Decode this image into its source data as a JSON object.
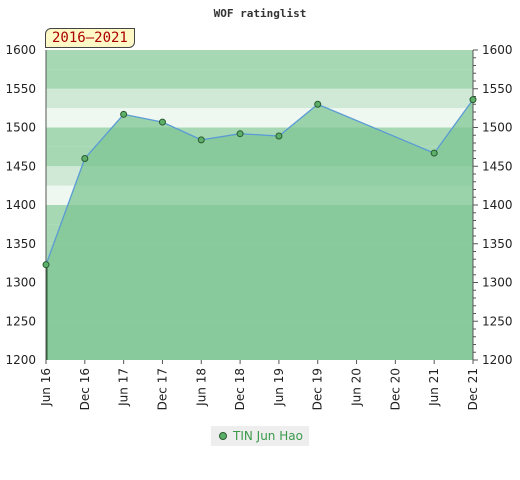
{
  "chart_data": {
    "type": "line",
    "title": "WOF ratinglist",
    "period_label": "2016–2021",
    "xlabel": "",
    "ylabel": "",
    "categories": [
      "Jun 16",
      "Dec 16",
      "Jun 17",
      "Dec 17",
      "Jun 18",
      "Dec 18",
      "Jun 19",
      "Dec 19",
      "Jun 20",
      "Dec 20",
      "Jun 21",
      "Dec 21"
    ],
    "ylim": [
      1200,
      1600
    ],
    "yticks": [
      1200,
      1250,
      1300,
      1350,
      1400,
      1450,
      1500,
      1550,
      1600
    ],
    "series": [
      {
        "name": "TIN Jun Hao",
        "points": [
          {
            "x": "Jun 16",
            "y": 1323
          },
          {
            "x": "Dec 16",
            "y": 1460
          },
          {
            "x": "Jun 17",
            "y": 1517
          },
          {
            "x": "Dec 17",
            "y": 1507
          },
          {
            "x": "Jun 18",
            "y": 1484
          },
          {
            "x": "Dec 18",
            "y": 1492
          },
          {
            "x": "Jun 19",
            "y": 1489
          },
          {
            "x": "Dec 19",
            "y": 1530
          },
          {
            "x": "Jun 21",
            "y": 1467
          },
          {
            "x": "Dec 21",
            "y": 1536
          }
        ]
      }
    ],
    "legend_position": "bottom",
    "grid": true
  },
  "colors": {
    "line": "#5b9bd5",
    "area": "#7dc593",
    "marker_fill": "#5cb06a",
    "marker_stroke": "#2a5a2f",
    "band_light": "#eef7f0",
    "band_mid": "#cfe9d6",
    "band_dark": "#a6d8b3"
  }
}
